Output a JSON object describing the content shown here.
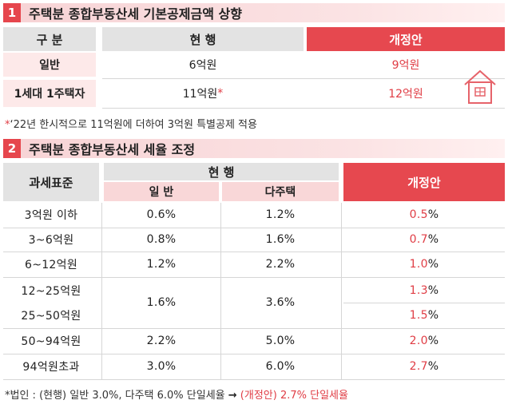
{
  "section1": {
    "num": "1",
    "title": "주택분 종합부동산세 기본공제금액 상향",
    "header": {
      "label": "구 분",
      "current": "현 행",
      "proposed": "개정안"
    },
    "rows": [
      {
        "label": "일반",
        "current": "6억원",
        "proposed": "9억원"
      },
      {
        "label": "1세대 1주택자",
        "current": "11억원",
        "current_mark": "*",
        "proposed": "12억원"
      }
    ],
    "note_mark": "*",
    "note": "‘22년 한시적으로 11억원에 더하여 3억원 특별공제 적용",
    "house_icon": "house-icon"
  },
  "section2": {
    "num": "2",
    "title": "주택분 종합부동산세 세율 조정",
    "header": {
      "label": "과세표준",
      "current": "현 행",
      "general": "일 반",
      "multi": "다주택",
      "proposed": "개정안"
    },
    "rows": [
      {
        "label": "3억원 이하",
        "general": "0.6",
        "multi": "1.2",
        "proposed": "0.5"
      },
      {
        "label": "3~6억원",
        "general": "0.8",
        "multi": "1.6",
        "proposed": "0.7"
      },
      {
        "label": "6~12억원",
        "general": "1.2",
        "multi": "2.2",
        "proposed": "1.0"
      },
      {
        "label": "12~25억원",
        "proposed": "1.3"
      },
      {
        "label": "25~50억원",
        "proposed": "1.5"
      },
      {
        "label": "50~94억원",
        "general": "2.2",
        "multi": "5.0",
        "proposed": "2.0"
      },
      {
        "label": "94억원초과",
        "general": "3.0",
        "multi": "6.0",
        "proposed": "2.7"
      }
    ],
    "merged": {
      "general": "1.6",
      "multi": "3.6"
    },
    "unit": "%",
    "note_prefix": "*법인 : (현행) 일반 3.0%, 다주택 6.0% 단일세율 ",
    "note_arrow": "→",
    "note_red": " (개정안) 2.7% 단일세율"
  }
}
